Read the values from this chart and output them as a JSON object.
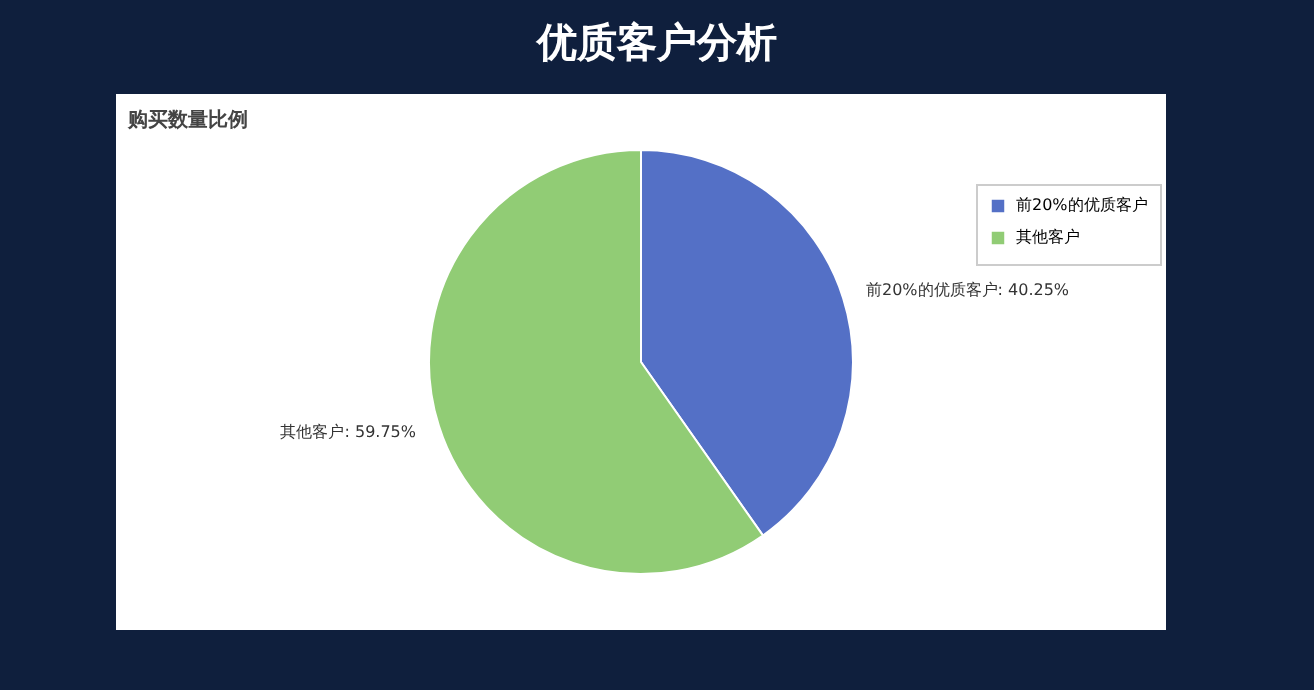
{
  "chart_data": {
    "type": "pie",
    "title": "优质客户分析",
    "subtitle": "购买数量比例",
    "categories": [
      "前20%的优质客户",
      "其他客户"
    ],
    "values": [
      40.25,
      59.75
    ],
    "colors": [
      "#5470c6",
      "#91cc75"
    ],
    "value_labels": [
      "前20%的优质客户: 40.25%",
      "其他客户: 59.75%"
    ],
    "legend": "top right"
  }
}
